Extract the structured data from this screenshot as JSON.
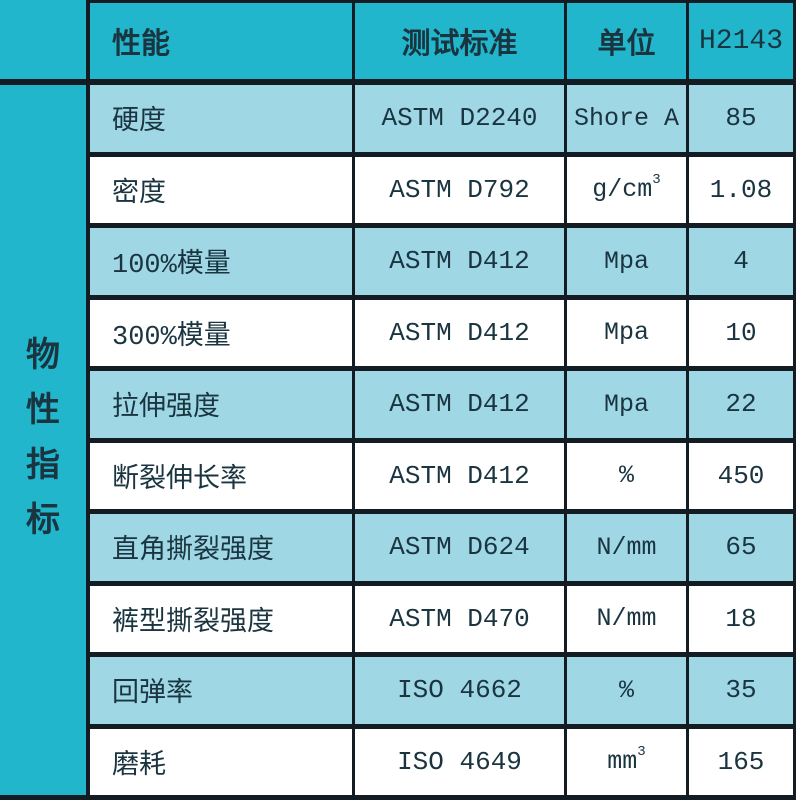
{
  "colors": {
    "teal": "#21B6CC",
    "light_blue": "#9FD7E5",
    "white": "#FFFFFF",
    "border": "#131C22",
    "text": "#1A3440"
  },
  "table": {
    "side_label": "物性指标",
    "side_label_chars": [
      "物",
      "性",
      "指",
      "标"
    ],
    "header": {
      "property": "性能",
      "standard": "测试标准",
      "unit": "单位",
      "grade": "H2143"
    },
    "rows": [
      {
        "property": "硬度",
        "standard": "ASTM D2240",
        "unit": "Shore A",
        "unit_sup": "",
        "value": "85"
      },
      {
        "property": "密度",
        "standard": "ASTM D792",
        "unit": "g/cm",
        "unit_sup": "3",
        "value": "1.08"
      },
      {
        "property": "100%模量",
        "standard": "ASTM D412",
        "unit": "Mpa",
        "unit_sup": "",
        "value": "4"
      },
      {
        "property": "300%模量",
        "standard": "ASTM D412",
        "unit": "Mpa",
        "unit_sup": "",
        "value": "10"
      },
      {
        "property": "拉伸强度",
        "standard": "ASTM D412",
        "unit": "Mpa",
        "unit_sup": "",
        "value": "22"
      },
      {
        "property": "断裂伸长率",
        "standard": "ASTM D412",
        "unit": "%",
        "unit_sup": "",
        "value": "450"
      },
      {
        "property": "直角撕裂强度",
        "standard": "ASTM D624",
        "unit": "N/mm",
        "unit_sup": "",
        "value": "65"
      },
      {
        "property": "裤型撕裂强度",
        "standard": "ASTM D470",
        "unit": "N/mm",
        "unit_sup": "",
        "value": "18"
      },
      {
        "property": "回弹率",
        "standard": "ISO 4662",
        "unit": "%",
        "unit_sup": "",
        "value": "35"
      },
      {
        "property": "磨耗",
        "standard": "ISO 4649",
        "unit": "mm",
        "unit_sup": "3",
        "value": "165"
      }
    ]
  }
}
